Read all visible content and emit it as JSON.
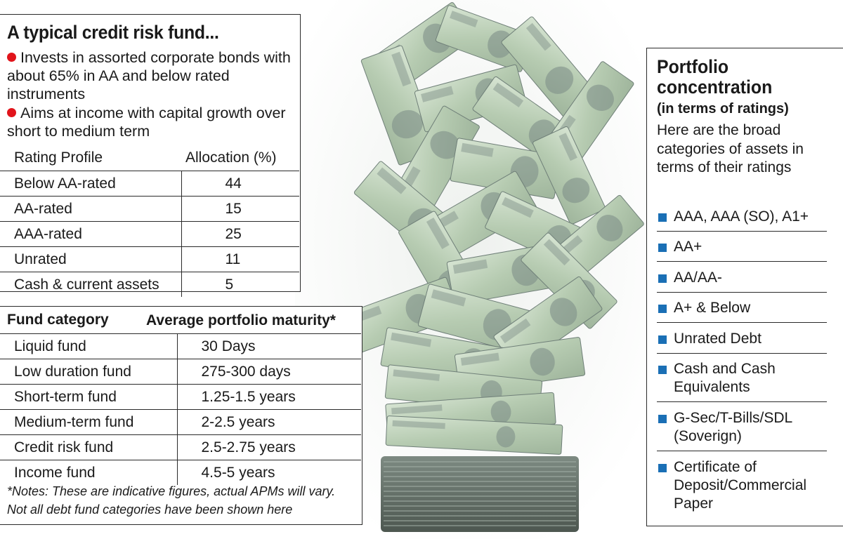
{
  "credit_fund": {
    "title": "A typical credit risk fund...",
    "bullets": [
      "Invests in assorted corporate bonds with about 65% in AA and below rated instruments",
      "Aims at income with capital growth over short to medium term"
    ],
    "rating_table": {
      "headers": [
        "Rating Profile",
        "Allocation (%)"
      ],
      "rows": [
        [
          "Below AA-rated",
          "44"
        ],
        [
          "AA-rated",
          "15"
        ],
        [
          "AAA-rated",
          "25"
        ],
        [
          "Unrated",
          "11"
        ],
        [
          "Cash & current assets",
          "5"
        ]
      ]
    }
  },
  "maturity": {
    "headers": [
      "Fund category",
      "Average portfolio maturity*"
    ],
    "rows": [
      [
        "Liquid fund",
        "30 Days"
      ],
      [
        "Low duration fund",
        "275-300 days"
      ],
      [
        "Short-term fund",
        "1.25-1.5 years"
      ],
      [
        "Medium-term fund",
        "2-2.5 years"
      ],
      [
        "Credit risk fund",
        "2.5-2.75 years"
      ],
      [
        "Income fund",
        "4.5-5 years"
      ]
    ],
    "notes_line1": "*Notes: These are indicative figures, actual APMs will vary.",
    "notes_line2": "Not all debt fund categories have been shown here"
  },
  "portfolio": {
    "title": "Portfolio concentration",
    "subtitle": "(in terms of ratings)",
    "description": "Here are the broad categories of assets in terms of their ratings",
    "legend": [
      "AAA, AAA (SO), A1+",
      "AA+",
      "AA/AA-",
      "A+ & Below",
      "Unrated Debt",
      "Cash and Cash Equivalents",
      "G-Sec/T-Bills/SDL (Soverign)",
      "Certificate of Deposit/Commercial Paper"
    ]
  },
  "colors": {
    "bullet_red": "#e1141b",
    "legend_blue": "#1a6fb5",
    "note_green": "#b9cdb4",
    "note_dark": "#6f7f78"
  }
}
